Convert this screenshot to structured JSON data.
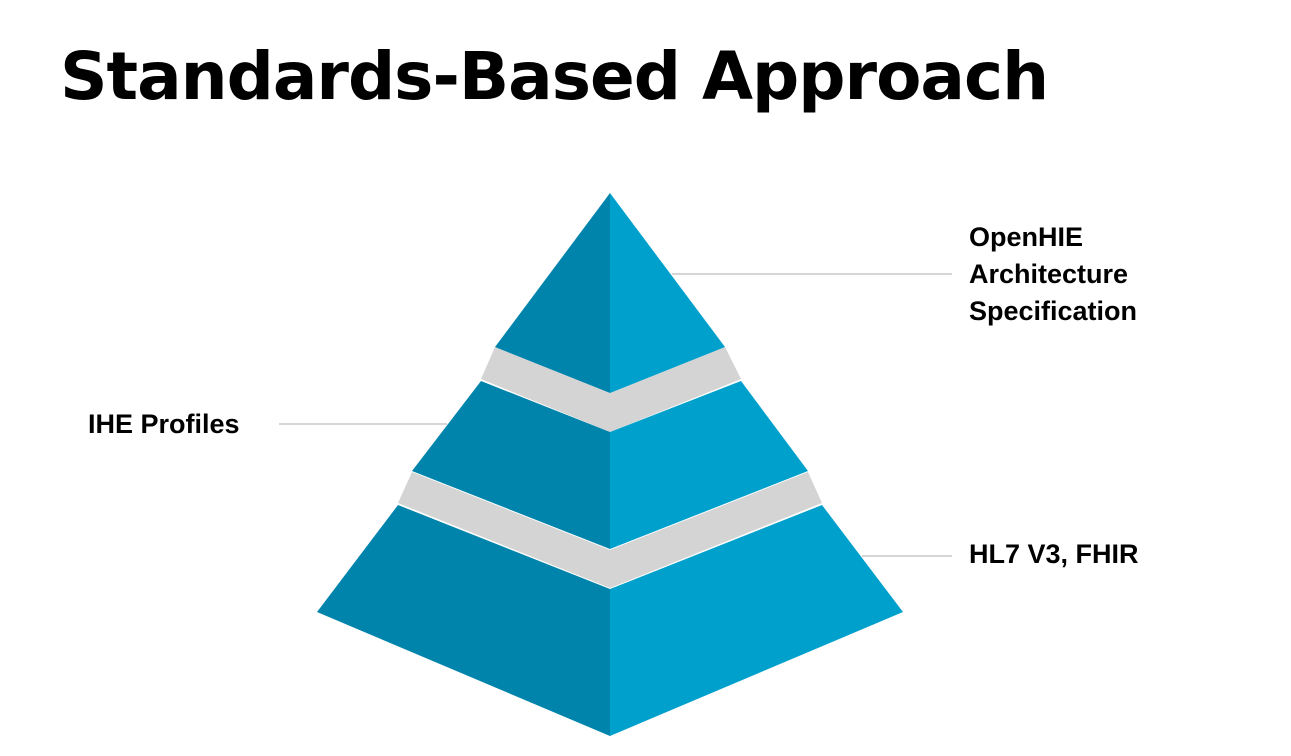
{
  "slide": {
    "title": "Standards-Based Approach"
  },
  "pyramid": {
    "colors": {
      "left_face": "#0084ab",
      "right_face": "#00a0cc",
      "gap": "#d4d4d4",
      "leader_line": "#c8c8c8"
    },
    "tiers": [
      {
        "label_lines": [
          "OpenHIE",
          "Architecture",
          "Specification"
        ]
      },
      {
        "label": "IHE Profiles"
      },
      {
        "label": "HL7 V3, FHIR"
      }
    ]
  }
}
